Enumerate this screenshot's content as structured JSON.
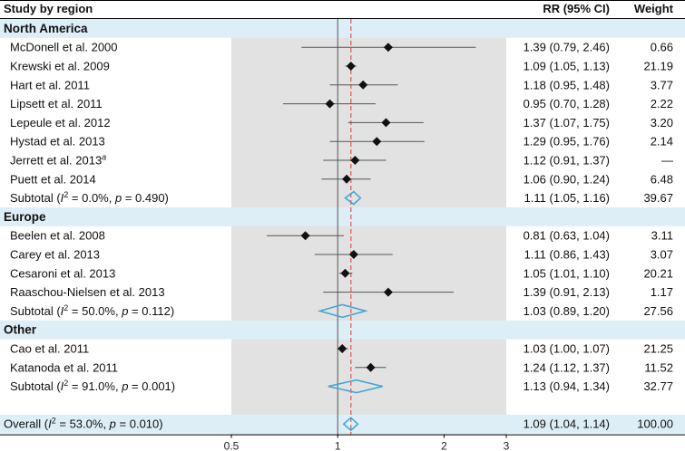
{
  "chart_data": {
    "type": "forest",
    "columns": {
      "study": "Study by region",
      "rr": "RR (95% CI)",
      "weight": "Weight"
    },
    "x_axis": {
      "scale": "log",
      "range": [
        0.5,
        3
      ],
      "ticks": [
        "0.5",
        "1",
        "2",
        "3"
      ],
      "null_line": 1,
      "overall_line": 1.09
    },
    "colors": {
      "band": "#ddeef6",
      "plot_bg": "#e2e2e2",
      "diamond": "#3aa6d6",
      "overall_line": "#e05555",
      "marker": "#111111"
    },
    "rows": [
      {
        "type": "region",
        "label": "North America"
      },
      {
        "type": "study",
        "label": "McDonell et al. 2000",
        "rr": 1.39,
        "lo": 0.79,
        "hi": 2.46,
        "ci_text": "1.39 (0.79, 2.46)",
        "weight": "0.66"
      },
      {
        "type": "study",
        "label": "Krewski et al. 2009",
        "rr": 1.09,
        "lo": 1.05,
        "hi": 1.13,
        "ci_text": "1.09 (1.05, 1.13)",
        "weight": "21.19"
      },
      {
        "type": "study",
        "label": "Hart et al. 2011",
        "rr": 1.18,
        "lo": 0.95,
        "hi": 1.48,
        "ci_text": "1.18 (0.95, 1.48)",
        "weight": "3.77"
      },
      {
        "type": "study",
        "label": "Lipsett et al. 2011",
        "rr": 0.95,
        "lo": 0.7,
        "hi": 1.28,
        "ci_text": "0.95 (0.70, 1.28)",
        "weight": "2.22"
      },
      {
        "type": "study",
        "label": "Lepeule et al. 2012",
        "rr": 1.37,
        "lo": 1.07,
        "hi": 1.75,
        "ci_text": "1.37 (1.07, 1.75)",
        "weight": "3.20"
      },
      {
        "type": "study",
        "label": "Hystad et al. 2013",
        "rr": 1.29,
        "lo": 0.95,
        "hi": 1.76,
        "ci_text": "1.29 (0.95, 1.76)",
        "weight": "2.14"
      },
      {
        "type": "study",
        "label": "Jerrett et al. 2013",
        "sup": "a",
        "rr": 1.12,
        "lo": 0.91,
        "hi": 1.37,
        "ci_text": "1.12 (0.91, 1.37)",
        "weight": "—"
      },
      {
        "type": "study",
        "label": "Puett et al. 2014",
        "rr": 1.06,
        "lo": 0.9,
        "hi": 1.24,
        "ci_text": "1.06 (0.90, 1.24)",
        "weight": "6.48"
      },
      {
        "type": "subtotal",
        "prefix": "Subtotal (",
        "i2": "I",
        "i2sup": "2",
        "stats": " = 0.0%, ",
        "pchar": "p",
        "pval": " = 0.490)",
        "rr": 1.11,
        "lo": 1.05,
        "hi": 1.16,
        "ci_text": "1.11 (1.05, 1.16)",
        "weight": "39.67"
      },
      {
        "type": "region",
        "label": "Europe"
      },
      {
        "type": "study",
        "label": "Beelen et al. 2008",
        "rr": 0.81,
        "lo": 0.63,
        "hi": 1.04,
        "ci_text": "0.81 (0.63, 1.04)",
        "weight": "3.11"
      },
      {
        "type": "study",
        "label": "Carey et al. 2013",
        "rr": 1.11,
        "lo": 0.86,
        "hi": 1.43,
        "ci_text": "1.11 (0.86, 1.43)",
        "weight": "3.07"
      },
      {
        "type": "study",
        "label": "Cesaroni et al. 2013",
        "rr": 1.05,
        "lo": 1.01,
        "hi": 1.1,
        "ci_text": "1.05 (1.01, 1.10)",
        "weight": "20.21"
      },
      {
        "type": "study",
        "label": "Raaschou-Nielsen et al. 2013",
        "rr": 1.39,
        "lo": 0.91,
        "hi": 2.13,
        "ci_text": "1.39 (0.91, 2.13)",
        "weight": "1.17"
      },
      {
        "type": "subtotal",
        "prefix": "Subtotal (",
        "i2": "I",
        "i2sup": "2",
        "stats": " = 50.0%, ",
        "pchar": "p",
        "pval": " = 0.112)",
        "rr": 1.03,
        "lo": 0.89,
        "hi": 1.2,
        "ci_text": "1.03 (0.89, 1.20)",
        "weight": "27.56"
      },
      {
        "type": "region",
        "label": "Other"
      },
      {
        "type": "study",
        "label": "Cao et al. 2011",
        "rr": 1.03,
        "lo": 1.0,
        "hi": 1.07,
        "ci_text": "1.03 (1.00, 1.07)",
        "weight": "21.25"
      },
      {
        "type": "study",
        "label": "Katanoda et al. 2011",
        "rr": 1.24,
        "lo": 1.12,
        "hi": 1.37,
        "ci_text": "1.24 (1.12, 1.37)",
        "weight": "11.52"
      },
      {
        "type": "subtotal",
        "prefix": "Subtotal (",
        "i2": "I",
        "i2sup": "2",
        "stats": " = 91.0%, ",
        "pchar": "p",
        "pval": " = 0.001)",
        "rr": 1.13,
        "lo": 0.94,
        "hi": 1.34,
        "ci_text": "1.13 (0.94, 1.34)",
        "weight": "32.77"
      },
      {
        "type": "spacer"
      },
      {
        "type": "overall",
        "prefix": "Overall (",
        "i2": "I",
        "i2sup": "2",
        "stats": " = 53.0%, ",
        "pchar": "p",
        "pval": " = 0.010)",
        "rr": 1.09,
        "lo": 1.04,
        "hi": 1.14,
        "ci_text": "1.09 (1.04, 1.14)",
        "weight": "100.00"
      }
    ]
  }
}
